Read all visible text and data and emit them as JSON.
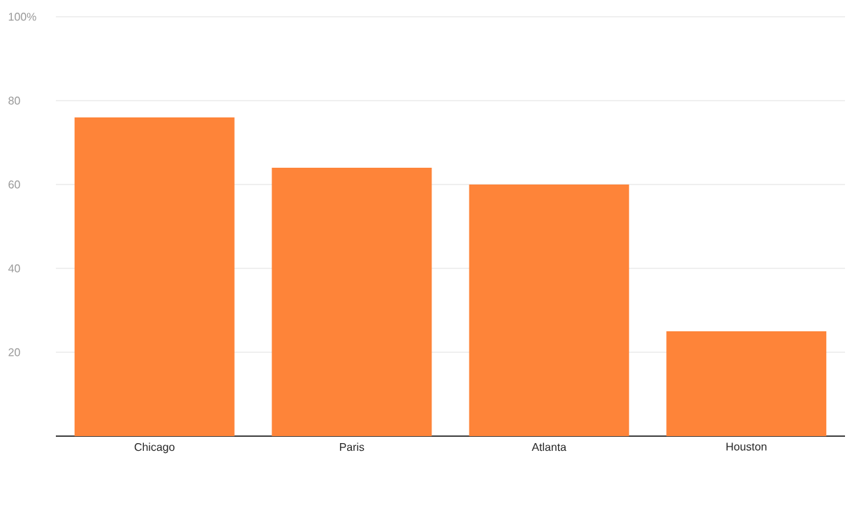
{
  "chart_data": {
    "type": "bar",
    "categories": [
      "Chicago",
      "Paris",
      "Atlanta",
      "Houston"
    ],
    "values": [
      76,
      64,
      60,
      25
    ],
    "color": "#fe8439",
    "ylim": [
      0,
      100
    ],
    "yticks": [
      20,
      40,
      60,
      80,
      {
        "value": 100,
        "label": "100%"
      }
    ],
    "grid": "y"
  }
}
